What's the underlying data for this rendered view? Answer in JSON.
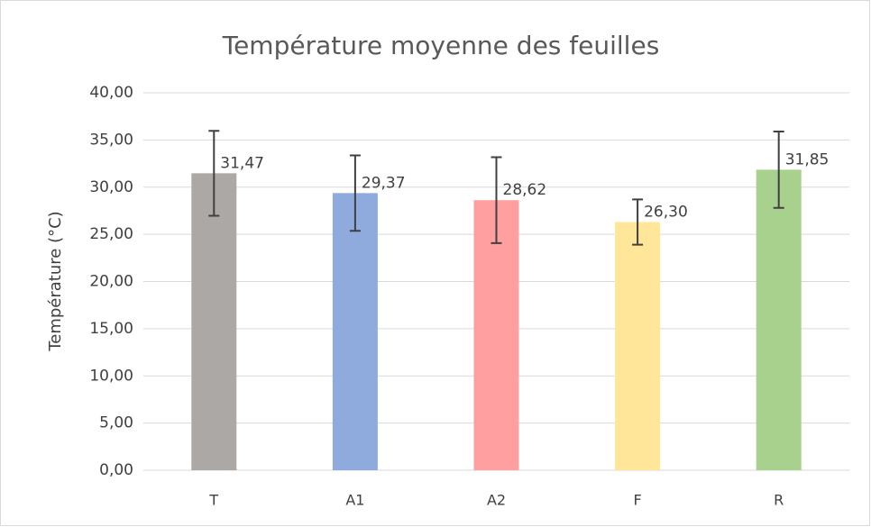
{
  "chart_data": {
    "type": "bar",
    "title": "Température moyenne des feuilles",
    "y_label": "Température (°C)",
    "categories": [
      "T",
      "A1",
      "A2",
      "F",
      "R"
    ],
    "values": [
      31.47,
      29.37,
      28.62,
      26.3,
      31.85
    ],
    "value_labels": [
      "31,47",
      "29,37",
      "28,62",
      "26,30",
      "31,85"
    ],
    "errors": [
      4.5,
      4.0,
      4.55,
      2.4,
      4.05
    ],
    "colors": [
      "#aba8a6",
      "#8faadc",
      "#ff9f9f",
      "#ffe699",
      "#a9d18e"
    ],
    "ylim": [
      0,
      40
    ],
    "yticks": [
      {
        "value": 0,
        "label": "0,00"
      },
      {
        "value": 5,
        "label": "5,00"
      },
      {
        "value": 10,
        "label": "10,00"
      },
      {
        "value": 15,
        "label": "15,00"
      },
      {
        "value": 20,
        "label": "20,00"
      },
      {
        "value": 25,
        "label": "25,00"
      },
      {
        "value": 30,
        "label": "30,00"
      },
      {
        "value": 35,
        "label": "35,00"
      },
      {
        "value": 40,
        "label": "40,00"
      }
    ],
    "grid": true
  }
}
